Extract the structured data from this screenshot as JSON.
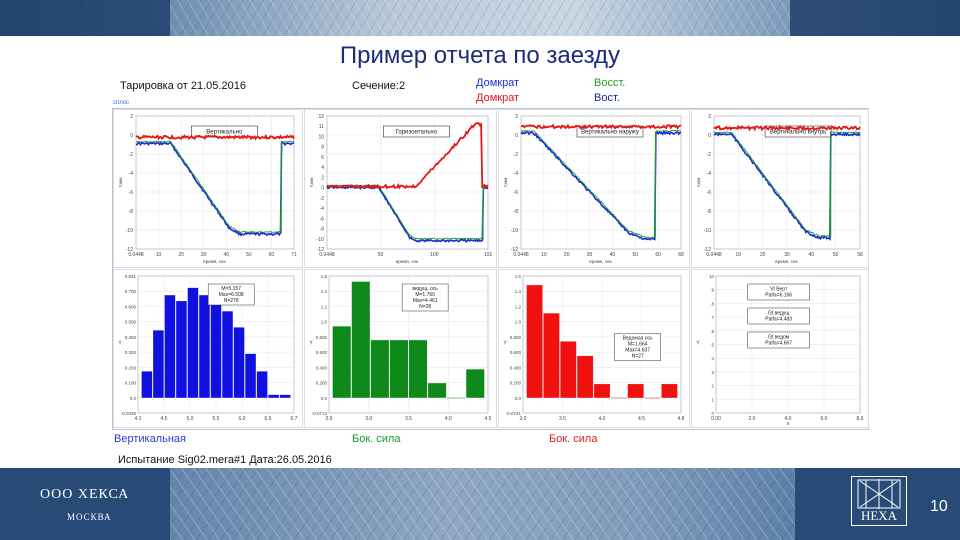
{
  "slide_title": "Пример отчета по заезду",
  "header": {
    "calibration": "Тарировка от 21.05.2016",
    "section": "Сечение:2",
    "legend": [
      {
        "text": "Домкрат",
        "color": "#1a2bd6"
      },
      {
        "text": "Восст.",
        "color": "#1f9a2a"
      },
      {
        "text": "Домкрат",
        "color": "#e01818"
      },
      {
        "text": "Вост.",
        "color": "#1a1f9e"
      }
    ]
  },
  "corner_label": "сплос",
  "time_panels": [
    {
      "label": "Вертикально",
      "ylabel": "Y,мм",
      "xlabel": "время, сек.",
      "x_ticks": [
        "0.0448",
        "10",
        "20",
        "30",
        "40",
        "50",
        "60",
        "71"
      ],
      "y_ticks": [
        "2",
        "0",
        "-2",
        "-4",
        "-6",
        "-8",
        "-10",
        "-12"
      ]
    },
    {
      "label": "Горизонтально",
      "ylabel": "Y,мм",
      "xlabel": "время, сек.",
      "x_ticks": [
        "0.0448",
        "50",
        "100",
        "101"
      ],
      "y_ticks": [
        "12",
        "11",
        "10",
        "8",
        "6",
        "4",
        "2",
        "0",
        "-2",
        "-4",
        "-6",
        "-8",
        "-10",
        "-12"
      ]
    },
    {
      "label": "Вертикально наружу",
      "ylabel": "Y,мм",
      "xlabel": "время, сек.",
      "x_ticks": [
        "0.0448",
        "10",
        "20",
        "30",
        "40",
        "50",
        "60",
        "68"
      ],
      "y_ticks": [
        "2",
        "0",
        "-2",
        "-4",
        "-6",
        "-8",
        "-10",
        "-12"
      ]
    },
    {
      "label": "Вертикально внутрь",
      "ylabel": "Y,мм",
      "xlabel": "время, сек.",
      "x_ticks": [
        "0.0448",
        "10",
        "20",
        "30",
        "40",
        "50",
        "58"
      ],
      "y_ticks": [
        "2",
        "0",
        "-2",
        "-4",
        "-6",
        "-8",
        "-10",
        "-12"
      ]
    }
  ],
  "histograms": [
    {
      "color": "#1010e0",
      "stats": [
        "M=5.157",
        "Max=6.508",
        "N=278"
      ],
      "x_ticks": [
        "4.1",
        "4.5",
        "5.0",
        "5.5",
        "6.0",
        "6.5",
        "6.7"
      ],
      "y_ticks": [
        "0.831",
        "0.700",
        "0.600",
        "0.500",
        "0.400",
        "0.300",
        "0.200",
        "0.100",
        "0.0",
        "-0.0336"
      ],
      "values": [
        0.18,
        0.46,
        0.7,
        0.66,
        0.75,
        0.7,
        0.77,
        0.59,
        0.48,
        0.3,
        0.18,
        0.02,
        0.02
      ]
    },
    {
      "color": "#0e8a1a",
      "stats": [
        "ведущ. ось",
        "M=1.760",
        "Max=4.461",
        "N=28"
      ],
      "x_ticks": [
        "2.9",
        "3.0",
        "3.5",
        "4.0",
        "4.5"
      ],
      "y_ticks": [
        "1.5",
        "1.4",
        "1.2",
        "1.0",
        "0.800",
        "0.600",
        "0.400",
        "0.200",
        "0.0",
        "-0.0713"
      ],
      "values": [
        0.88,
        1.43,
        0.71,
        0.71,
        0.71,
        0.18,
        0.0,
        0.35
      ]
    },
    {
      "color": "#f01010",
      "stats": [
        "Ведомая ось",
        "M=1.664",
        "Max=4.637",
        "N=27"
      ],
      "x_ticks": [
        "3.0",
        "3.5",
        "4.0",
        "4.5",
        "4.8"
      ],
      "y_ticks": [
        "1.6",
        "1.4",
        "1.2",
        "1.0",
        "0.800",
        "0.600",
        "0.400",
        "0.200",
        "0.0",
        "-0.0741"
      ],
      "values": [
        1.48,
        1.11,
        0.74,
        0.55,
        0.18,
        0.0,
        0.18,
        0.0,
        0.18
      ]
    },
    {
      "color": "#333333",
      "boxes": [
        [
          "Vt Верт",
          "Palfa=6.166"
        ],
        [
          "Gt ведущ",
          "Palfa=4.483"
        ],
        [
          "Gt ведом",
          "Palfa=4.667"
        ]
      ],
      "x_ticks": [
        "0.00",
        "2.0",
        "4.0",
        "6.0",
        "8.0"
      ],
      "y_ticks": [
        "10",
        "9",
        "8",
        "7",
        "6",
        "5",
        "4",
        "3",
        "2",
        "1",
        "0"
      ]
    }
  ],
  "bottom_labels": [
    {
      "text": "Вертикальная",
      "color": "#2b3ad8"
    },
    {
      "text": "Бок. сила",
      "color": "#169a26"
    },
    {
      "text": "Бок. сила",
      "color": "#e01c1c"
    }
  ],
  "test_info": "Испытание Sig02.mera#1 Дата:26.05.2016",
  "footer": {
    "company": "ООО ХЕКСА",
    "city": "МОСКВА",
    "logo_text": "HEXA",
    "page_number": "10"
  }
}
